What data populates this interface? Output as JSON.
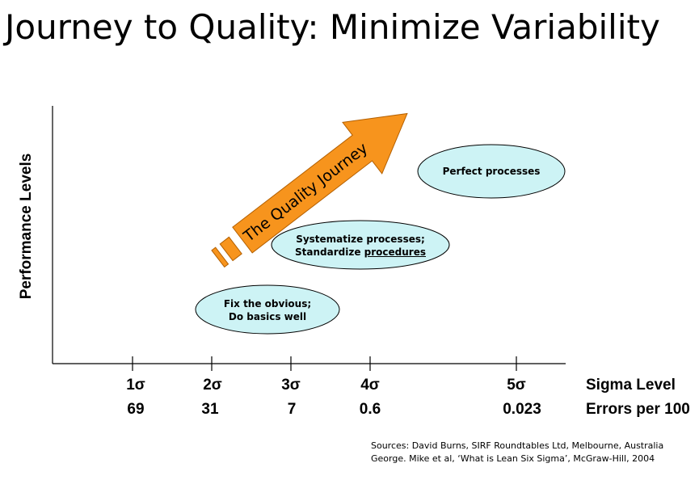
{
  "title": "Journey to Quality: Minimize Variability",
  "y_axis_label": "Performance Levels",
  "x_axis": {
    "sigma_name": "Sigma Level",
    "errors_name": "Errors per 100",
    "ticks": [
      {
        "sigma": "1σ",
        "errors": "69"
      },
      {
        "sigma": "2σ",
        "errors": "31"
      },
      {
        "sigma": "3σ",
        "errors": "7"
      },
      {
        "sigma": "4σ",
        "errors": "0.6"
      },
      {
        "sigma": "5σ",
        "errors": "0.023"
      }
    ]
  },
  "arrow_label": "The Quality Journey",
  "stages": {
    "fix": {
      "line1": "Fix the obvious;",
      "line2": "Do basics well"
    },
    "systematize": {
      "line1": "Systematize processes;",
      "line2_plain": "Standardize ",
      "line2_underlined": "procedures"
    },
    "perfect": {
      "line1": "Perfect processes"
    }
  },
  "colors": {
    "ellipse_fill": "#cdf3f5",
    "arrow_fill": "#f7941d",
    "arrow_stroke": "#b35f00"
  },
  "sources": {
    "line1": "Sources: David Burns, SIRF Roundtables Ltd, Melbourne, Australia",
    "line2": "George. Mike et al, ‘What is Lean Six Sigma’, McGraw-Hill, 2004"
  }
}
